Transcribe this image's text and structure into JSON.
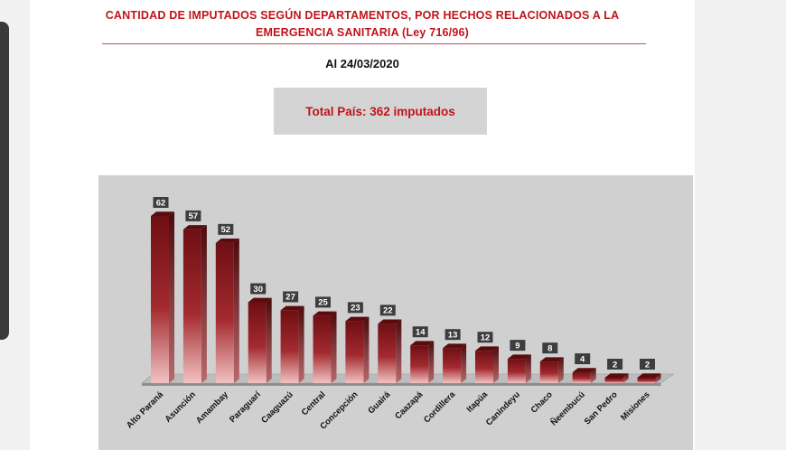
{
  "header": {
    "title_line1": "CANTIDAD DE IMPUTADOS SEGÚN DEPARTAMENTOS, POR HECHOS RELACIONADOS A LA",
    "title_line2": "EMERGENCIA SANITARIA (Ley 716/96)",
    "date": "Al 24/03/2020"
  },
  "summary": {
    "total": "Total País: 362 imputados"
  },
  "colors": {
    "accent": "#c0141a",
    "bar_dark": "#6e0f13",
    "bar_light": "#f2c2c2",
    "panel": "#d0d0d0"
  },
  "chart_data": {
    "type": "bar",
    "title": "",
    "xlabel": "",
    "ylabel": "",
    "categories": [
      "Alto Paraná",
      "Asunción",
      "Amambay",
      "Paraguarí",
      "Caaguazú",
      "Central",
      "Concepción",
      "Guairá",
      "Caazapá",
      "Cordillera",
      "Itapúa",
      "Canindeyu",
      "Chaco",
      "Ñeembucú",
      "San Pedro",
      "Misiones"
    ],
    "values": [
      62,
      57,
      52,
      30,
      27,
      25,
      23,
      22,
      14,
      13,
      12,
      9,
      8,
      4,
      2,
      2
    ],
    "ylim": [
      0,
      62
    ],
    "grid": false,
    "legend": "none",
    "data_labels": true
  }
}
